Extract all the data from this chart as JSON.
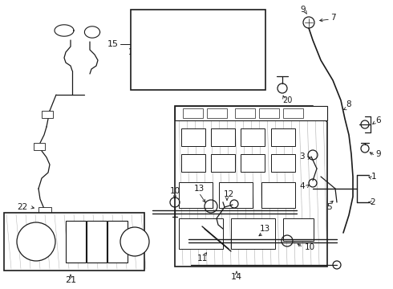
{
  "bg_color": "#ffffff",
  "lc": "#1a1a1a",
  "fig_w": 4.9,
  "fig_h": 3.6,
  "dpi": 100,
  "xmax": 490,
  "ymax": 360
}
